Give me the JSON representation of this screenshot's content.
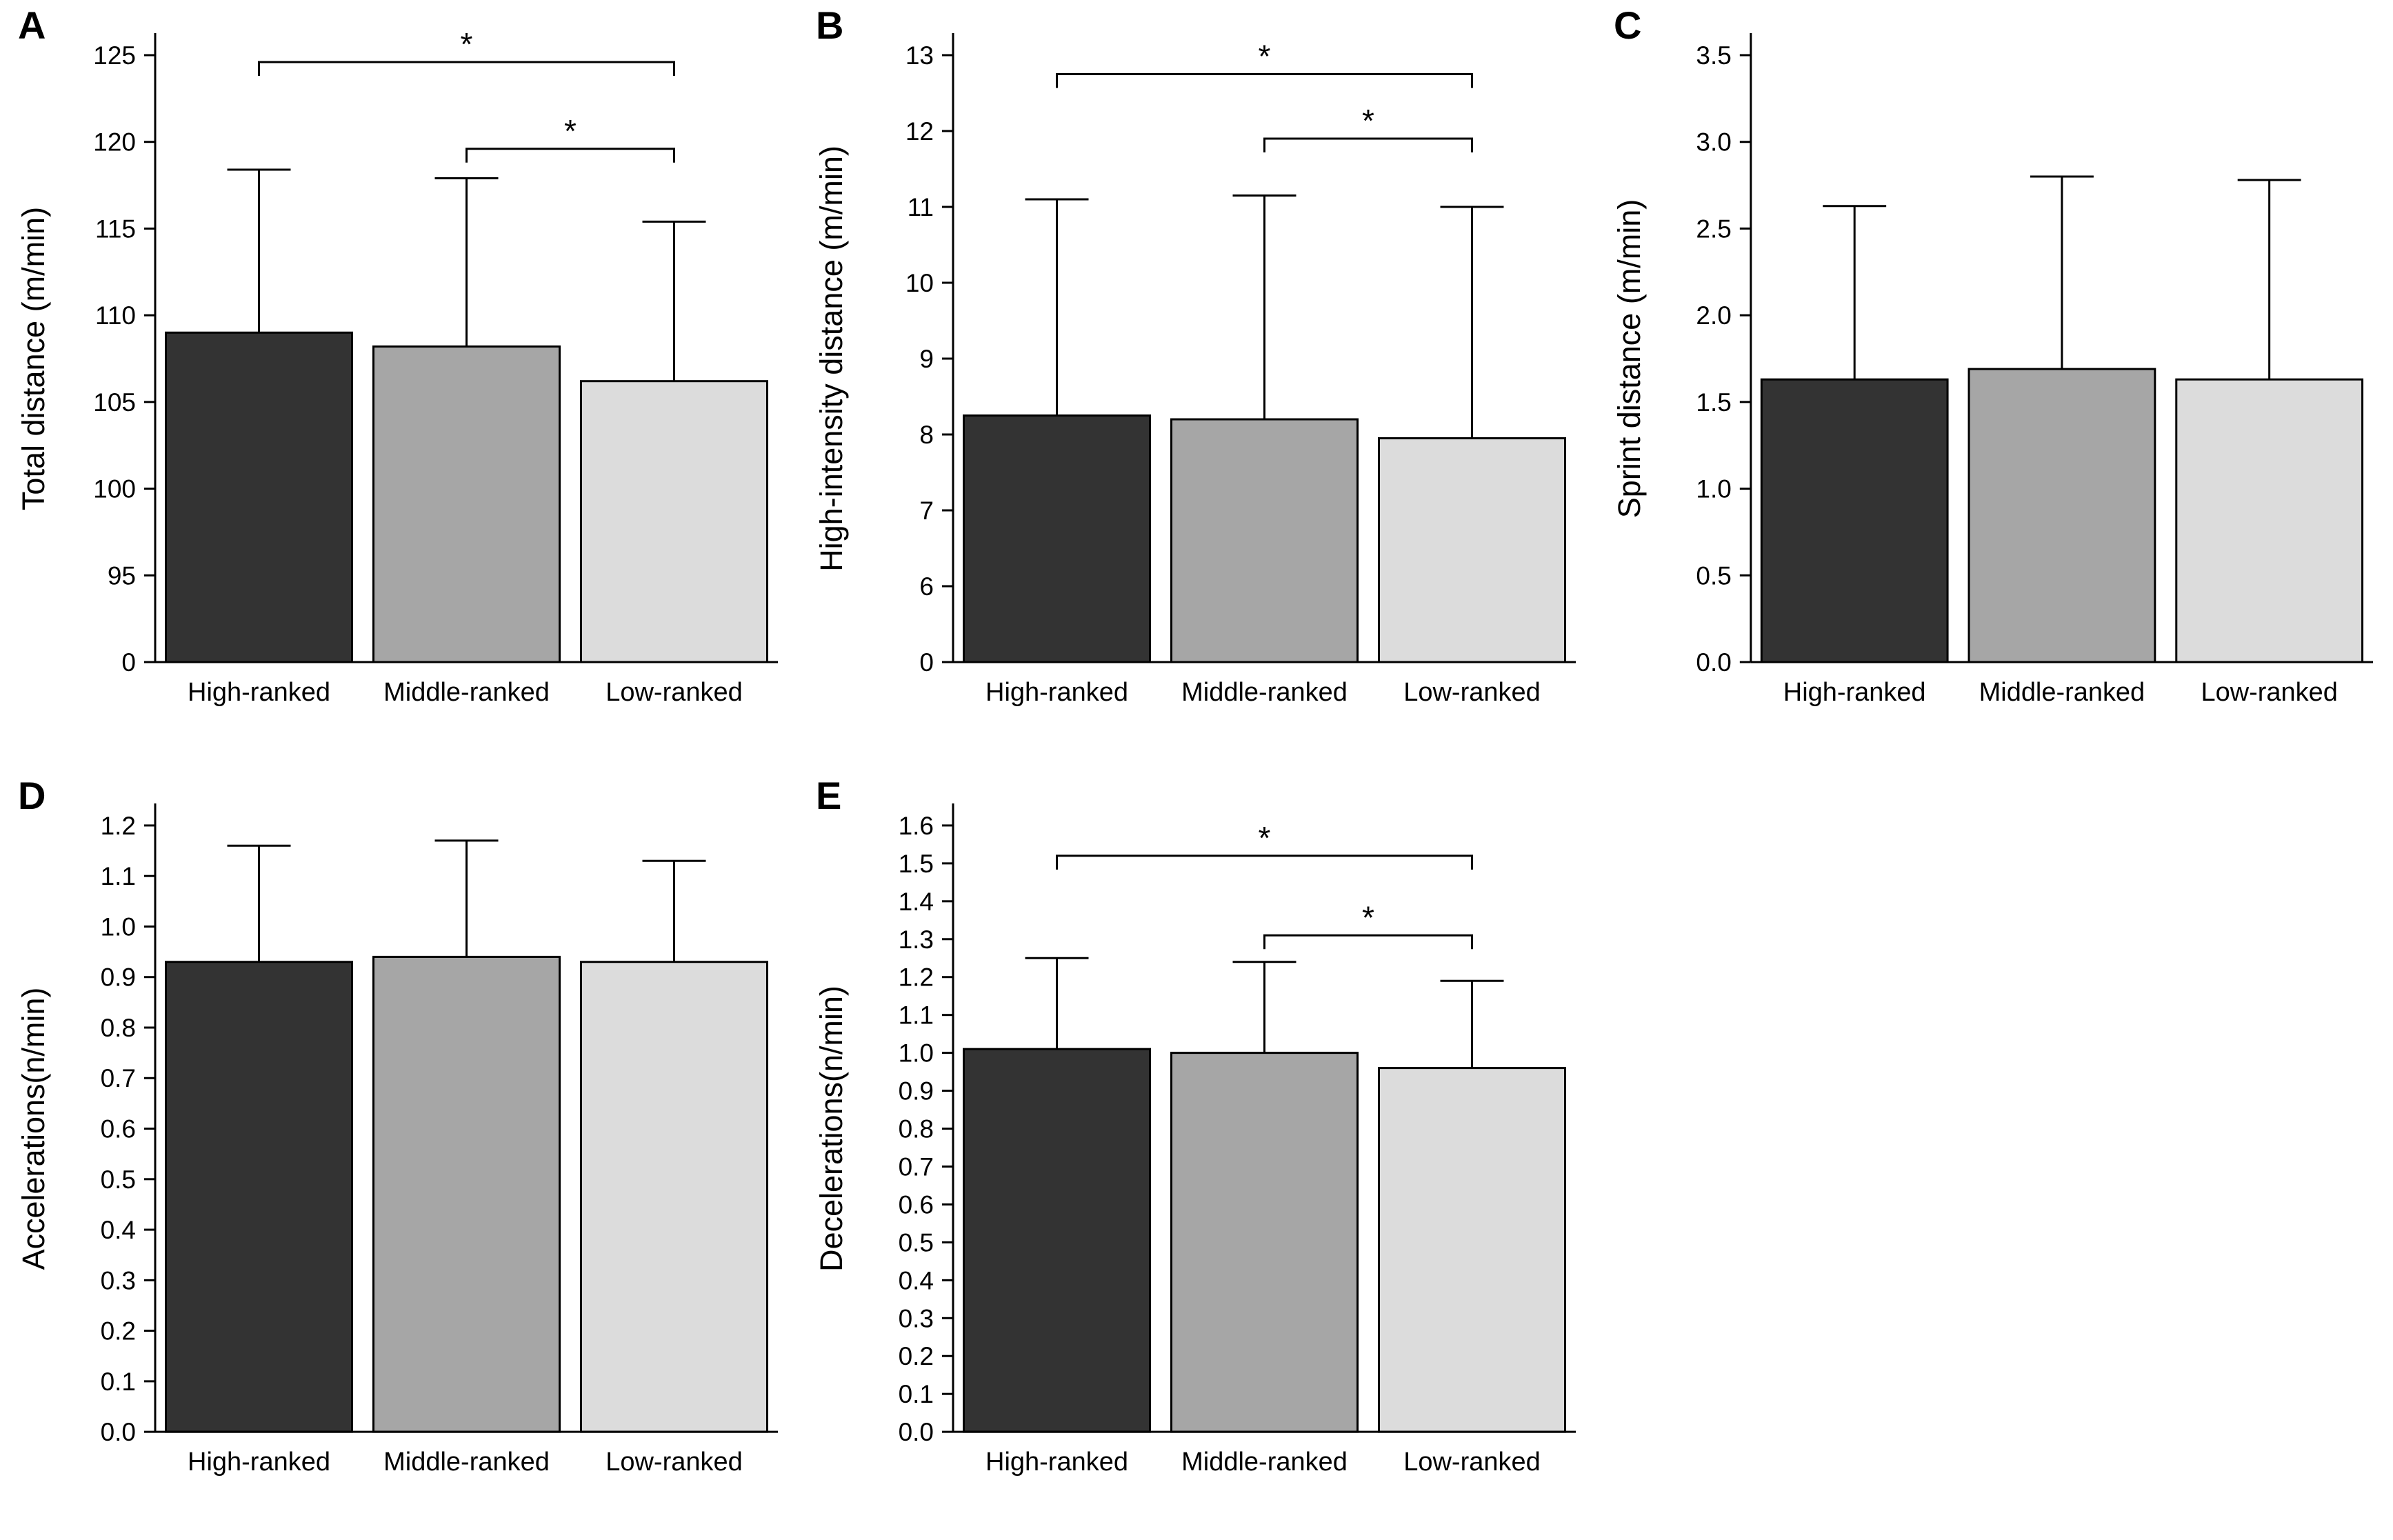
{
  "figure": {
    "background": "#ffffff",
    "bar_colors": [
      "#333333",
      "#a6a6a6",
      "#dcdcdc"
    ],
    "bar_stroke": "#000000",
    "axis_color": "#000000",
    "categories": [
      "High-ranked",
      "Middle-ranked",
      "Low-ranked"
    ]
  },
  "chart_data": [
    {
      "type": "bar",
      "panel": "A",
      "ylabel": "Total distance (m/min)",
      "xlabel": "",
      "categories": [
        "High-ranked",
        "Middle-ranked",
        "Low-ranked"
      ],
      "values": [
        109.0,
        108.2,
        106.2
      ],
      "error_top": [
        118.4,
        117.9,
        115.4
      ],
      "yticks": [
        0,
        95,
        100,
        105,
        110,
        115,
        120,
        125
      ],
      "ytick_labels": [
        "0",
        "95",
        "100",
        "105",
        "110",
        "115",
        "120",
        "125"
      ],
      "axis_broken": true,
      "brackets": [
        {
          "from": 0,
          "to": 2,
          "y": 124.6,
          "label": "*"
        },
        {
          "from": 1,
          "to": 2,
          "y": 119.6,
          "label": "*"
        }
      ]
    },
    {
      "type": "bar",
      "panel": "B",
      "ylabel": "High-intensity distance (m/min)",
      "xlabel": "",
      "categories": [
        "High-ranked",
        "Middle-ranked",
        "Low-ranked"
      ],
      "values": [
        8.25,
        8.2,
        7.95
      ],
      "error_top": [
        11.1,
        11.15,
        11.0
      ],
      "yticks": [
        0,
        6,
        7,
        8,
        9,
        10,
        11,
        12,
        13
      ],
      "ytick_labels": [
        "0",
        "6",
        "7",
        "8",
        "9",
        "10",
        "11",
        "12",
        "13"
      ],
      "axis_broken": true,
      "brackets": [
        {
          "from": 0,
          "to": 2,
          "y": 12.75,
          "label": "*"
        },
        {
          "from": 1,
          "to": 2,
          "y": 11.9,
          "label": "*"
        }
      ]
    },
    {
      "type": "bar",
      "panel": "C",
      "ylabel": "Sprint distance (m/min)",
      "xlabel": "",
      "categories": [
        "High-ranked",
        "Middle-ranked",
        "Low-ranked"
      ],
      "values": [
        1.63,
        1.69,
        1.63
      ],
      "error_top": [
        2.63,
        2.8,
        2.78
      ],
      "yticks": [
        0,
        0.5,
        1.0,
        1.5,
        2.0,
        2.5,
        3.0,
        3.5
      ],
      "ytick_labels": [
        "0.0",
        "0.5",
        "1.0",
        "1.5",
        "2.0",
        "2.5",
        "3.0",
        "3.5"
      ],
      "axis_broken": false,
      "brackets": []
    },
    {
      "type": "bar",
      "panel": "D",
      "ylabel": "Accelerations(n/min)",
      "xlabel": "",
      "categories": [
        "High-ranked",
        "Middle-ranked",
        "Low-ranked"
      ],
      "values": [
        0.93,
        0.94,
        0.93
      ],
      "error_top": [
        1.16,
        1.17,
        1.13
      ],
      "yticks": [
        0,
        0.1,
        0.2,
        0.3,
        0.4,
        0.5,
        0.6,
        0.7,
        0.8,
        0.9,
        1.0,
        1.1,
        1.2
      ],
      "ytick_labels": [
        "0.0",
        "0.1",
        "0.2",
        "0.3",
        "0.4",
        "0.5",
        "0.6",
        "0.7",
        "0.8",
        "0.9",
        "1.0",
        "1.1",
        "1.2"
      ],
      "axis_broken": false,
      "brackets": []
    },
    {
      "type": "bar",
      "panel": "E",
      "ylabel": "Decelerations(n/min)",
      "xlabel": "",
      "categories": [
        "High-ranked",
        "Middle-ranked",
        "Low-ranked"
      ],
      "values": [
        1.01,
        1.0,
        0.96
      ],
      "error_top": [
        1.25,
        1.24,
        1.19
      ],
      "yticks": [
        0,
        0.1,
        0.2,
        0.3,
        0.4,
        0.5,
        0.6,
        0.7,
        0.8,
        0.9,
        1.0,
        1.1,
        1.2,
        1.3,
        1.4,
        1.5,
        1.6
      ],
      "ytick_labels": [
        "0.0",
        "0.1",
        "0.2",
        "0.3",
        "0.4",
        "0.5",
        "0.6",
        "0.7",
        "0.8",
        "0.9",
        "1.0",
        "1.1",
        "1.2",
        "1.3",
        "1.4",
        "1.5",
        "1.6"
      ],
      "axis_broken": false,
      "brackets": [
        {
          "from": 0,
          "to": 2,
          "y": 1.52,
          "label": "*"
        },
        {
          "from": 1,
          "to": 2,
          "y": 1.31,
          "label": "*"
        }
      ]
    }
  ]
}
